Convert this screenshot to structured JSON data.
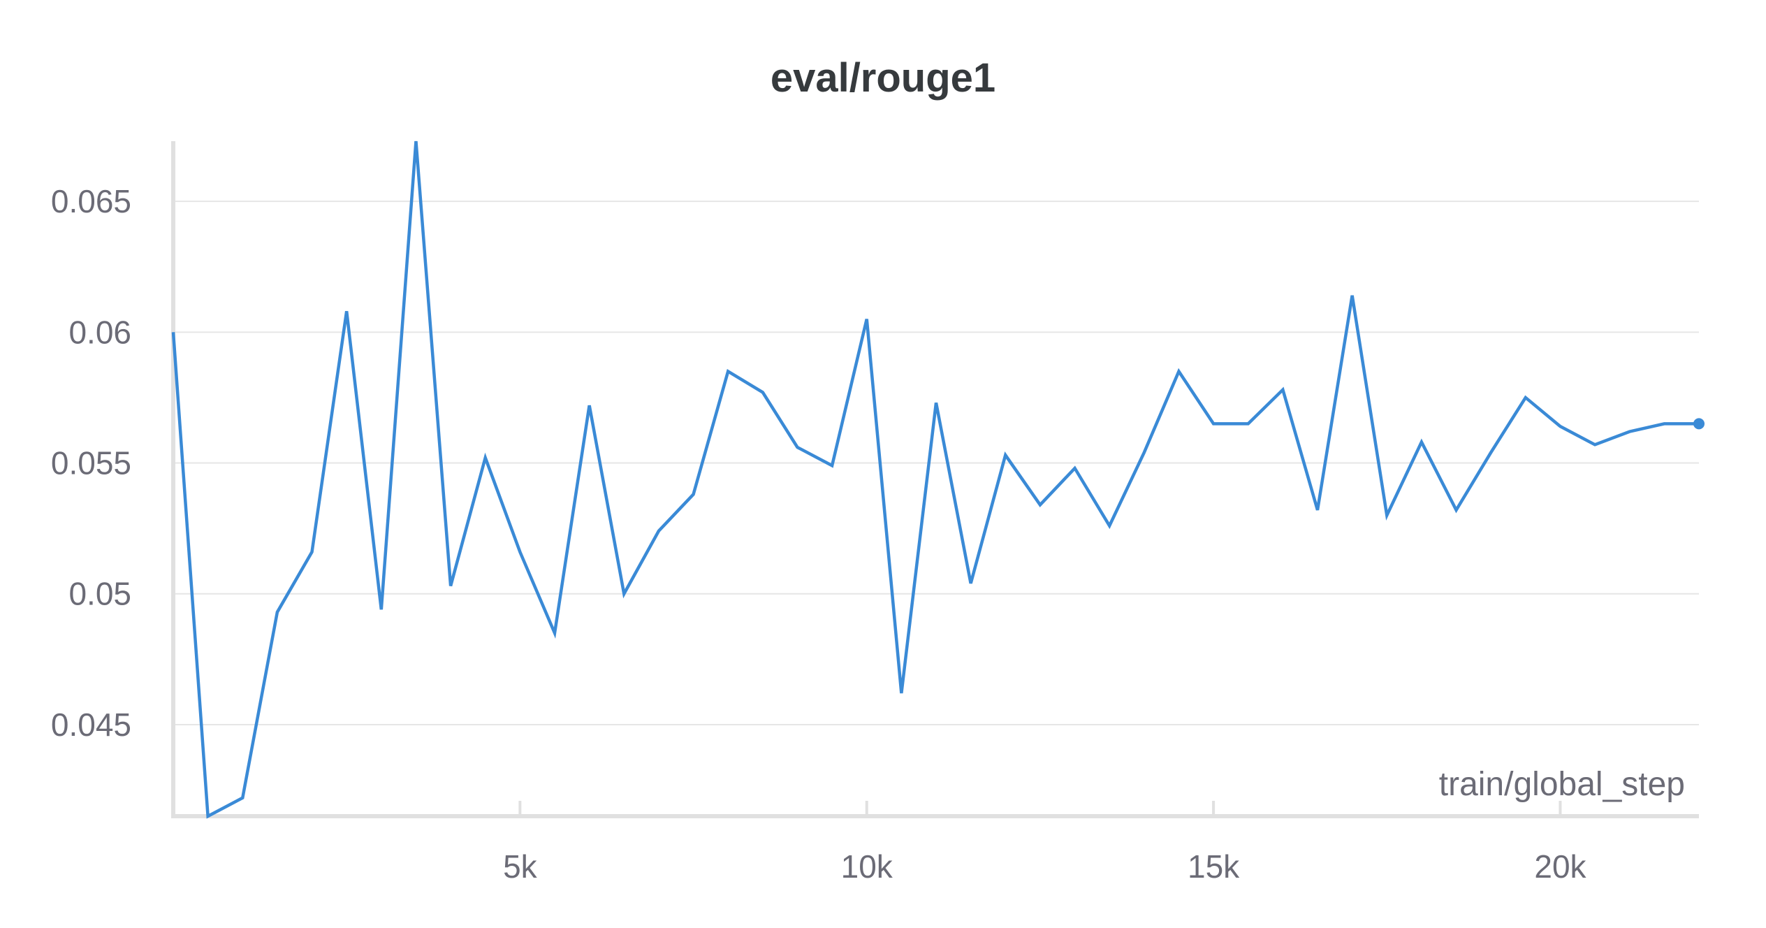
{
  "chart_data": {
    "type": "line",
    "title": "eval/rouge1",
    "xlabel": "train/global_step",
    "ylabel": "",
    "xlim": [
      0,
      22000
    ],
    "ylim": [
      0.0415,
      0.0673
    ],
    "x_ticks": [
      {
        "value": 5000,
        "label": "5k"
      },
      {
        "value": 10000,
        "label": "10k"
      },
      {
        "value": 15000,
        "label": "15k"
      },
      {
        "value": 20000,
        "label": "20k"
      }
    ],
    "y_ticks": [
      {
        "value": 0.045,
        "label": "0.045"
      },
      {
        "value": 0.05,
        "label": "0.05"
      },
      {
        "value": 0.055,
        "label": "0.055"
      },
      {
        "value": 0.06,
        "label": "0.06"
      },
      {
        "value": 0.065,
        "label": "0.065"
      }
    ],
    "grid": true,
    "colors": {
      "line": "#3a8ad6",
      "grid": "#e6e6e6",
      "axis": "#e0e0e0",
      "tick_text": "#6b6b76",
      "title": "#363a3d"
    },
    "series": [
      {
        "x": [
          0,
          500,
          1000,
          1500,
          2000,
          2500,
          3000,
          3500,
          4000,
          4500,
          5000,
          5500,
          6000,
          6500,
          7000,
          7500,
          8000,
          8500,
          9000,
          9500,
          10000,
          10500,
          11000,
          11500,
          12000,
          12500,
          13000,
          13500,
          14000,
          14500,
          15000,
          15500,
          16000,
          16500,
          17000,
          17500,
          18000,
          18500,
          19000,
          19500,
          20000,
          20500,
          21000,
          21500,
          22000
        ],
        "y": [
          0.06,
          0.0415,
          0.0422,
          0.0493,
          0.0516,
          0.0608,
          0.0494,
          0.0673,
          0.0503,
          0.0552,
          0.0516,
          0.0485,
          0.0572,
          0.05,
          0.0524,
          0.0538,
          0.0585,
          0.0577,
          0.0556,
          0.0549,
          0.0605,
          0.0462,
          0.0573,
          0.0504,
          0.0553,
          0.0534,
          0.0548,
          0.0526,
          0.0554,
          0.0585,
          0.0565,
          0.0565,
          0.0578,
          0.0532,
          0.0614,
          0.053,
          0.0558,
          0.0532,
          0.0554,
          0.0575,
          0.0564,
          0.0557,
          0.0562,
          0.0565,
          0.0565
        ]
      }
    ]
  }
}
